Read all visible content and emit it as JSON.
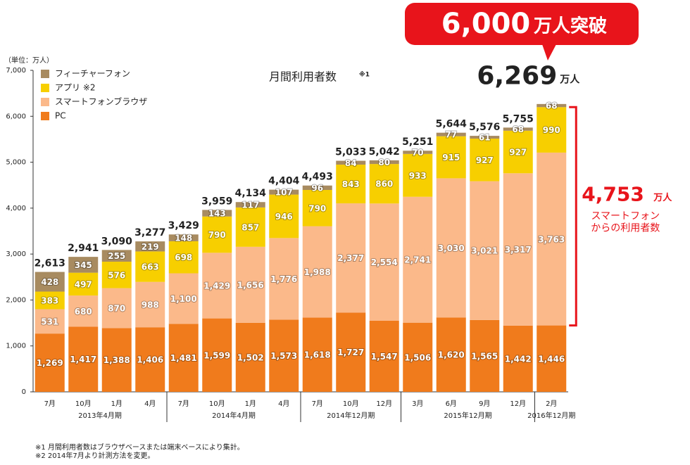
{
  "chart_data": {
    "type": "stacked_bar",
    "title": "月間利用者数",
    "title_note": "※1",
    "unit_label": "（単位：万人）",
    "categories": [
      "7月",
      "10月",
      "1月",
      "4月",
      "7月",
      "10月",
      "1月",
      "4月",
      "7月",
      "10月",
      "12月",
      "3月",
      "6月",
      "9月",
      "12月",
      "2月"
    ],
    "periods": [
      "2013年4月期",
      "2013年4月期",
      "2013年4月期",
      "2013年4月期",
      "2014年4月期",
      "2014年4月期",
      "2014年4月期",
      "2014年4月期",
      "2014年12月期",
      "2014年12月期",
      "2014年12月期",
      "2015年12月期",
      "2015年12月期",
      "2015年12月期",
      "2015年12月期",
      "2016年12月期"
    ],
    "series": [
      {
        "name": "PC",
        "color": "#f07b1c",
        "values": [
          1269,
          1417,
          1388,
          1406,
          1481,
          1599,
          1502,
          1573,
          1618,
          1727,
          1547,
          1506,
          1620,
          1565,
          1442,
          1446
        ],
        "value_labels": [
          "1,269",
          "1,417",
          "1,388",
          "1,406",
          "1,481",
          "1,599",
          "1,502",
          "1,573",
          "1,618",
          "1,727",
          "1,547",
          "1,506",
          "1,620",
          "1,565",
          "1,442",
          "1,446"
        ]
      },
      {
        "name": "スマートフォンブラウザ",
        "color": "#fbb98a",
        "values": [
          531,
          680,
          870,
          988,
          1100,
          1429,
          1656,
          1776,
          1988,
          2377,
          2554,
          2741,
          3030,
          3021,
          3317,
          3763
        ],
        "value_labels": [
          "531",
          "680",
          "870",
          "988",
          "1,100",
          "1,429",
          "1,656",
          "1,776",
          "1,988",
          "2,377",
          "2,554",
          "2,741",
          "3,030",
          "3,021",
          "3,317",
          "3,763"
        ]
      },
      {
        "name": "アプリ ※2",
        "color": "#f7cf00",
        "values": [
          383,
          497,
          576,
          663,
          698,
          790,
          857,
          946,
          790,
          843,
          860,
          933,
          915,
          927,
          927,
          990
        ]
      },
      {
        "name": "フィーチャーフォン",
        "color": "#a88b60",
        "values": [
          428,
          345,
          255,
          219,
          148,
          143,
          117,
          107,
          96,
          84,
          80,
          70,
          77,
          61,
          68,
          68
        ]
      }
    ],
    "totals": {
      "values": [
        2613,
        2941,
        3090,
        3277,
        3429,
        3959,
        4134,
        4404,
        4493,
        5033,
        5042,
        5251,
        5644,
        5576,
        5755,
        6269
      ],
      "value_labels": [
        "2,613",
        "2,941",
        "3,090",
        "3,277",
        "3,429",
        "3,959",
        "4,134",
        "4,404",
        "4,493",
        "5,033",
        "5,042",
        "5,251",
        "5,644",
        "5,576",
        "5,755",
        "6,269"
      ],
      "unit": "万人"
    },
    "ylim": [
      0,
      7000
    ],
    "yticks": [
      0,
      {
        "value": 1000,
        "label": "1,000"
      },
      {
        "value": 2000,
        "label": "2,000"
      },
      {
        "value": 3000,
        "label": "3,000"
      },
      {
        "value": 4000,
        "label": "4,000"
      },
      {
        "value": 5000,
        "label": "5,000"
      },
      {
        "value": 6000,
        "label": "6,000"
      },
      {
        "value": 7000,
        "label": "7,000"
      }
    ],
    "legend": "top-left",
    "callout": {
      "number": "6,000",
      "text": "万人突破"
    },
    "smartphone_note": {
      "value_label": "4,753",
      "unit": "万人",
      "lines": [
        "スマートフォン",
        "からの利用者数"
      ]
    },
    "footnotes": [
      "※1 月間利用者数はブラウザベースまたは端末ベースにより集計。",
      "※2 2014年7月より計測方法を変更。"
    ]
  }
}
